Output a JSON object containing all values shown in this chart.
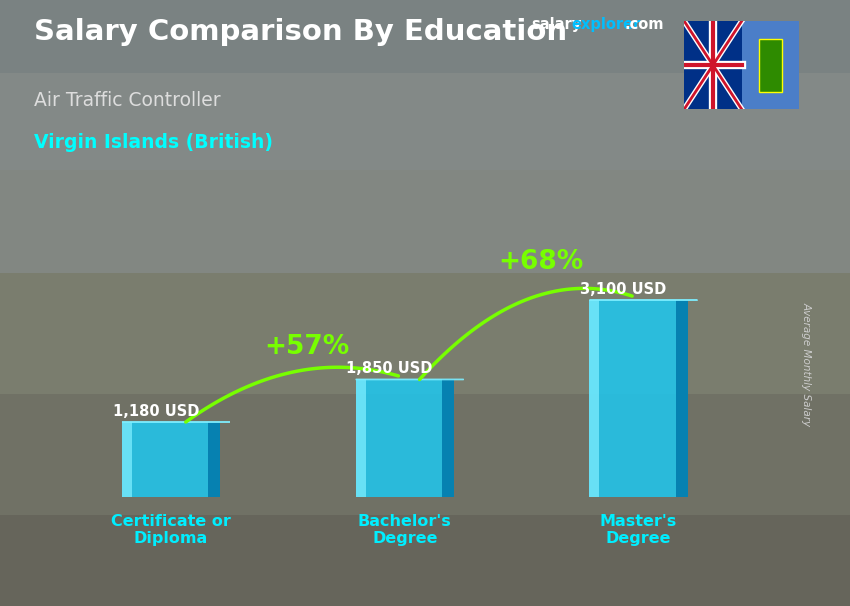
{
  "title": "Salary Comparison By Education",
  "subtitle": "Air Traffic Controller",
  "location": "Virgin Islands (British)",
  "ylabel": "Average Monthly Salary",
  "categories": [
    "Certificate or\nDiploma",
    "Bachelor's\nDegree",
    "Master's\nDegree"
  ],
  "values": [
    1180,
    1850,
    3100
  ],
  "labels": [
    "1,180 USD",
    "1,850 USD",
    "3,100 USD"
  ],
  "pct_labels": [
    "+57%",
    "+68%"
  ],
  "bar_color_main": "#1EC8F0",
  "bar_color_light": "#7EEEFF",
  "bar_color_dark": "#0099CC",
  "bar_color_darker": "#0077AA",
  "bar_alpha": 0.85,
  "bg_color": "#7a8a8a",
  "title_color": "#ffffff",
  "subtitle_color": "#dddddd",
  "location_color": "#00FFFF",
  "pct_color": "#77FF00",
  "label_color": "#ffffff",
  "xlabel_color": "#00EEFF",
  "salary_label_color": "#cccccc",
  "brand_salary_color": "#ffffff",
  "brand_explorer_color": "#00BFFF",
  "brand_com_color": "#ffffff",
  "ylim": [
    0,
    4200
  ],
  "bar_width": 0.42,
  "x_positions": [
    0,
    1,
    2
  ]
}
